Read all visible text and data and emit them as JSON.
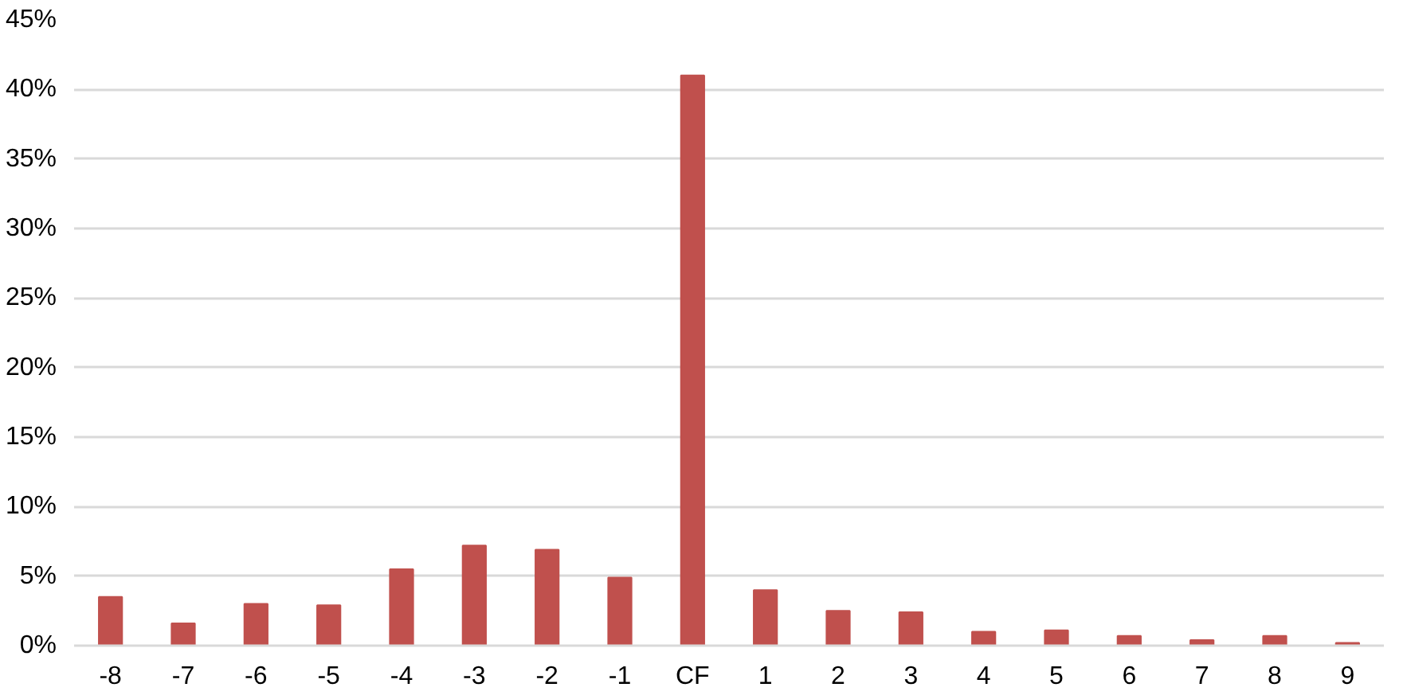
{
  "chart_data": {
    "type": "bar",
    "categories": [
      "-8",
      "-7",
      "-6",
      "-5",
      "-4",
      "-3",
      "-2",
      "-1",
      "CF",
      "1",
      "2",
      "3",
      "4",
      "5",
      "6",
      "7",
      "8",
      "9"
    ],
    "values": [
      3.5,
      1.6,
      3.0,
      2.9,
      5.5,
      7.2,
      6.9,
      4.9,
      41.0,
      4.0,
      2.5,
      2.4,
      1.0,
      1.1,
      0.7,
      0.4,
      0.7,
      0.2
    ],
    "color": "#c0504d",
    "ylim": [
      0,
      45
    ],
    "yticks": [
      {
        "value": 0,
        "label": "0%"
      },
      {
        "value": 5,
        "label": "5%"
      },
      {
        "value": 10,
        "label": "10%"
      },
      {
        "value": 15,
        "label": "15%"
      },
      {
        "value": 20,
        "label": "20%"
      },
      {
        "value": 25,
        "label": "25%"
      },
      {
        "value": 30,
        "label": "30%"
      },
      {
        "value": 35,
        "label": "35%"
      },
      {
        "value": 40,
        "label": "40%"
      },
      {
        "value": 45,
        "label": "45%"
      }
    ],
    "grid": "y"
  }
}
